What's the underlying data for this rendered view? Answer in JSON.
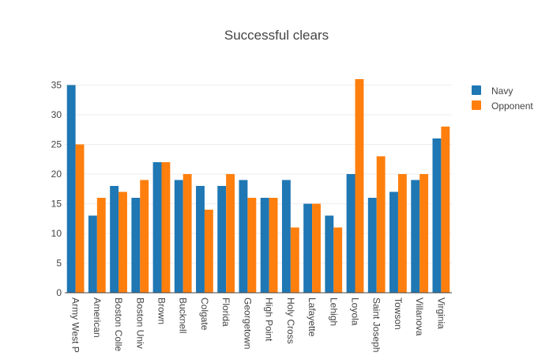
{
  "chart_data": {
    "type": "bar",
    "title": "Successful clears",
    "xlabel": "",
    "ylabel": "",
    "categories": [
      "Army West Point",
      "American",
      "Boston College",
      "Boston University",
      "Brown",
      "Bucknell",
      "Colgate",
      "Florida",
      "Georgetown",
      "High Point",
      "Holy Cross",
      "Lafayette",
      "Lehigh",
      "Loyola",
      "Saint Joseph's",
      "Towson",
      "Villanova",
      "Virginia"
    ],
    "tick_labels": [
      "Army West P",
      "American",
      "Boston Colle",
      "Boston Univ",
      "Brown",
      "Bucknell",
      "Colgate",
      "Florida",
      "Georgetown",
      "High Point",
      "Holy Cross",
      "Lafayette",
      "Lehigh",
      "Loyola",
      "Saint Joseph",
      "Towson",
      "Villanova",
      "Virginia"
    ],
    "series": [
      {
        "name": "Navy",
        "color": "#1f77b4",
        "values": [
          35,
          13,
          18,
          16,
          22,
          19,
          18,
          18,
          19,
          16,
          19,
          15,
          13,
          20,
          16,
          17,
          19,
          26
        ]
      },
      {
        "name": "Opponent",
        "color": "#ff7f0e",
        "values": [
          25,
          16,
          17,
          19,
          22,
          20,
          14,
          20,
          16,
          16,
          11,
          15,
          11,
          36,
          23,
          20,
          20,
          28
        ]
      }
    ],
    "ylim": [
      0,
      36
    ],
    "yticks": [
      0,
      5,
      10,
      15,
      20,
      25,
      30,
      35
    ],
    "grid": true,
    "legend_position": "top-right"
  }
}
